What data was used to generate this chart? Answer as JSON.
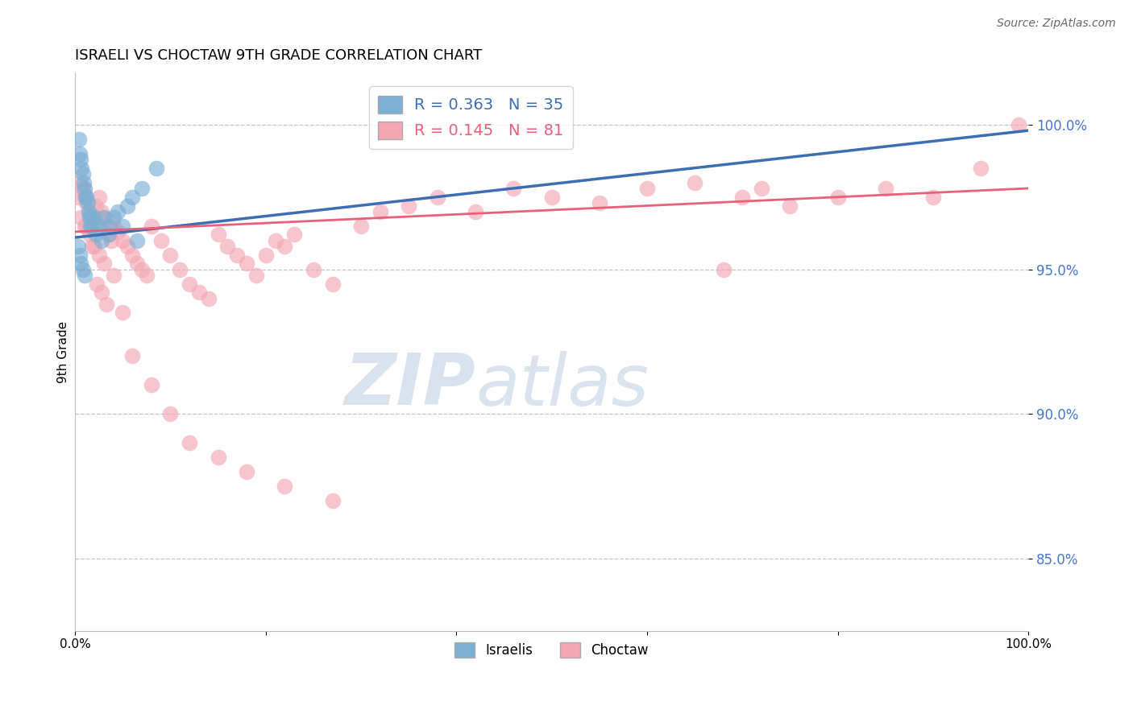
{
  "title": "ISRAELI VS CHOCTAW 9TH GRADE CORRELATION CHART",
  "source": "Source: ZipAtlas.com",
  "ylabel": "9th Grade",
  "x_min": 0.0,
  "x_max": 100.0,
  "y_min": 82.5,
  "y_max": 101.8,
  "yticks": [
    85.0,
    90.0,
    95.0,
    100.0
  ],
  "ytick_labels": [
    "85.0%",
    "90.0%",
    "95.0%",
    "100.0%"
  ],
  "xticks": [
    0.0,
    20.0,
    40.0,
    60.0,
    80.0,
    100.0
  ],
  "xtick_labels": [
    "0.0%",
    "",
    "",
    "",
    "",
    "100.0%"
  ],
  "blue_R": 0.363,
  "blue_N": 35,
  "pink_R": 0.145,
  "pink_N": 81,
  "blue_color": "#7BAFD4",
  "pink_color": "#F4A7B3",
  "blue_line_color": "#3D6DB5",
  "pink_line_color": "#E8607A",
  "watermark_zip": "ZIP",
  "watermark_atlas": "atlas",
  "blue_points_x": [
    0.4,
    0.5,
    0.6,
    0.7,
    0.8,
    0.9,
    1.0,
    1.1,
    1.2,
    1.3,
    1.4,
    1.5,
    1.6,
    1.7,
    1.8,
    2.0,
    2.2,
    2.5,
    2.8,
    3.0,
    3.5,
    4.0,
    4.5,
    5.0,
    5.5,
    6.0,
    6.5,
    7.0,
    0.3,
    0.5,
    0.6,
    0.8,
    1.0,
    3.5,
    8.5
  ],
  "blue_points_y": [
    99.5,
    99.0,
    98.8,
    98.5,
    98.3,
    98.0,
    97.8,
    97.5,
    97.5,
    97.3,
    97.0,
    96.8,
    96.5,
    96.8,
    96.5,
    96.8,
    96.2,
    96.5,
    96.0,
    96.8,
    96.5,
    96.8,
    97.0,
    96.5,
    97.2,
    97.5,
    96.0,
    97.8,
    95.8,
    95.5,
    95.2,
    95.0,
    94.8,
    96.2,
    98.5
  ],
  "pink_points_x": [
    0.3,
    0.5,
    0.8,
    1.0,
    1.2,
    1.5,
    1.8,
    2.0,
    2.2,
    2.5,
    2.8,
    3.0,
    3.2,
    3.5,
    3.8,
    4.0,
    4.5,
    5.0,
    5.5,
    6.0,
    6.5,
    7.0,
    7.5,
    8.0,
    9.0,
    10.0,
    11.0,
    12.0,
    13.0,
    14.0,
    15.0,
    16.0,
    17.0,
    18.0,
    19.0,
    20.0,
    21.0,
    22.0,
    23.0,
    25.0,
    27.0,
    30.0,
    32.0,
    35.0,
    38.0,
    42.0,
    46.0,
    50.0,
    55.0,
    60.0,
    65.0,
    68.0,
    70.0,
    72.0,
    75.0,
    80.0,
    85.0,
    90.0,
    95.0,
    99.0,
    0.6,
    1.0,
    1.5,
    2.0,
    2.5,
    3.0,
    4.0,
    5.0,
    6.0,
    8.0,
    10.0,
    12.0,
    15.0,
    18.0,
    22.0,
    1.2,
    1.8,
    2.3,
    2.8,
    3.3,
    27.0
  ],
  "pink_points_y": [
    97.5,
    98.0,
    97.8,
    97.6,
    97.3,
    97.0,
    96.8,
    96.5,
    97.2,
    97.5,
    97.0,
    96.8,
    96.5,
    96.2,
    96.0,
    96.5,
    96.3,
    96.0,
    95.8,
    95.5,
    95.2,
    95.0,
    94.8,
    96.5,
    96.0,
    95.5,
    95.0,
    94.5,
    94.2,
    94.0,
    96.2,
    95.8,
    95.5,
    95.2,
    94.8,
    95.5,
    96.0,
    95.8,
    96.2,
    95.0,
    94.5,
    96.5,
    97.0,
    97.2,
    97.5,
    97.0,
    97.8,
    97.5,
    97.3,
    97.8,
    98.0,
    95.0,
    97.5,
    97.8,
    97.2,
    97.5,
    97.8,
    97.5,
    98.5,
    100.0,
    96.8,
    96.5,
    96.2,
    95.8,
    95.5,
    95.2,
    94.8,
    93.5,
    92.0,
    91.0,
    90.0,
    89.0,
    88.5,
    88.0,
    87.5,
    96.5,
    95.8,
    94.5,
    94.2,
    93.8,
    87.0
  ]
}
